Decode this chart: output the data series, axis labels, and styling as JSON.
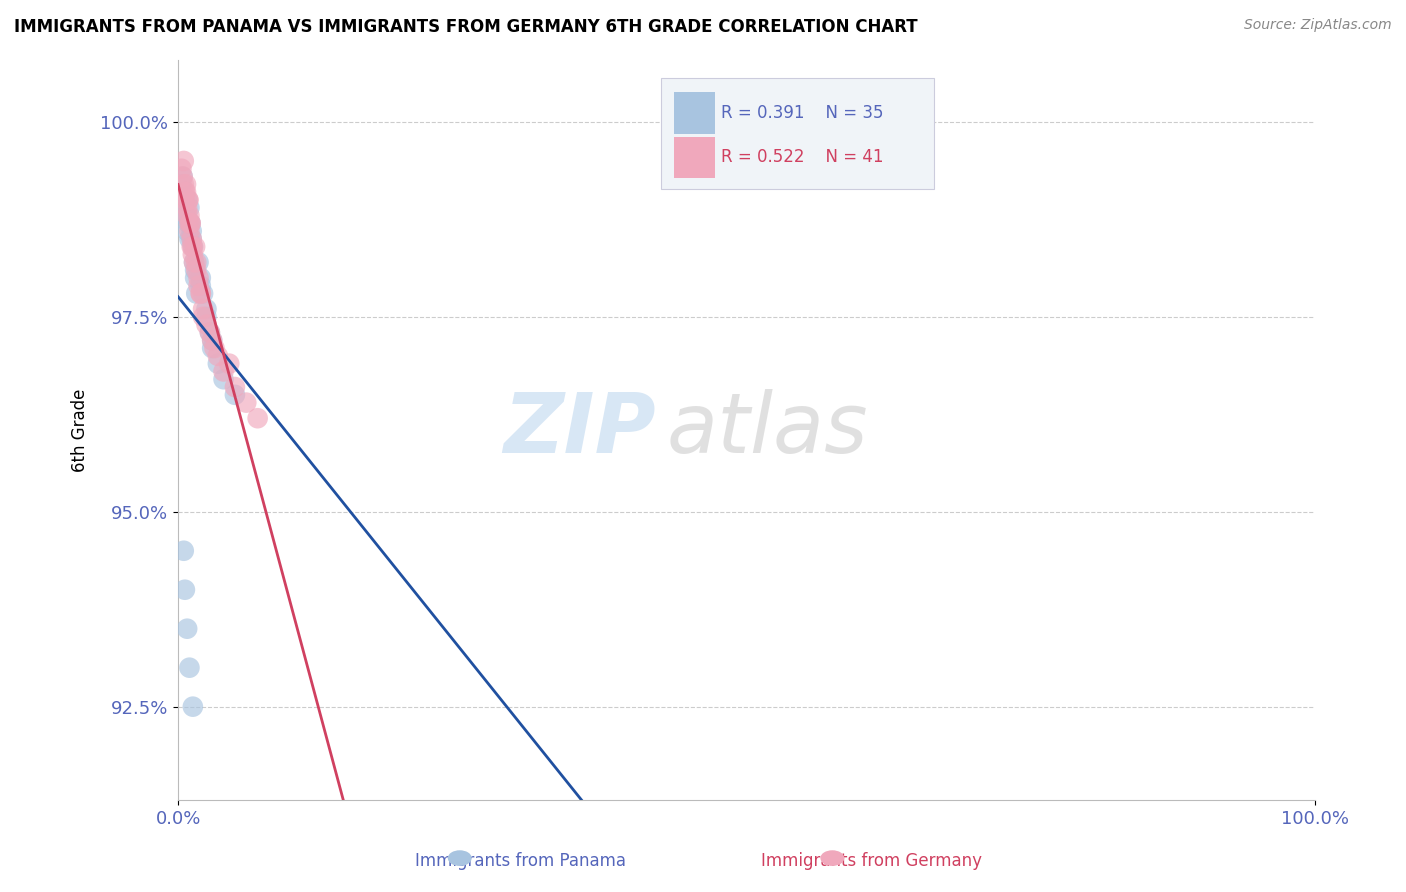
{
  "title": "IMMIGRANTS FROM PANAMA VS IMMIGRANTS FROM GERMANY 6TH GRADE CORRELATION CHART",
  "source": "Source: ZipAtlas.com",
  "xlabel_bottom": "Immigrants from Panama",
  "xlabel_bottom2": "Immigrants from Germany",
  "ylabel": "6th Grade",
  "watermark_zip": "ZIP",
  "watermark_atlas": "atlas",
  "xlim": [
    0.0,
    100.0
  ],
  "ylim": [
    91.3,
    100.8
  ],
  "yticks": [
    92.5,
    95.0,
    97.5,
    100.0
  ],
  "xticks": [
    0.0,
    100.0
  ],
  "legend_r1": "R = 0.391",
  "legend_n1": "N = 35",
  "legend_r2": "R = 0.522",
  "legend_n2": "N = 41",
  "panama_color": "#a8c4e0",
  "germany_color": "#f0a8bc",
  "panama_line_color": "#2050a0",
  "germany_line_color": "#d04060",
  "panama_points_x": [
    0.3,
    0.5,
    0.6,
    0.8,
    0.8,
    1.0,
    1.0,
    1.1,
    1.2,
    1.3,
    1.4,
    1.5,
    1.6,
    1.8,
    2.0,
    2.2,
    2.5,
    2.8,
    3.0,
    3.5,
    4.0,
    5.0,
    0.4,
    0.7,
    0.9,
    1.2,
    1.5,
    2.0,
    2.5,
    3.0,
    0.5,
    0.6,
    0.8,
    1.0,
    1.3
  ],
  "panama_points_y": [
    99.2,
    99.0,
    98.8,
    99.0,
    98.6,
    98.9,
    98.5,
    98.7,
    98.6,
    98.4,
    98.2,
    98.0,
    97.8,
    98.2,
    98.0,
    97.8,
    97.5,
    97.3,
    97.1,
    96.9,
    96.7,
    96.5,
    99.3,
    98.8,
    98.7,
    98.5,
    98.1,
    97.9,
    97.6,
    97.2,
    94.5,
    94.0,
    93.5,
    93.0,
    92.5
  ],
  "germany_points_x": [
    0.3,
    0.5,
    0.6,
    0.7,
    0.8,
    0.9,
    1.0,
    1.0,
    1.1,
    1.2,
    1.3,
    1.5,
    1.6,
    1.8,
    2.0,
    2.2,
    2.5,
    3.0,
    3.5,
    4.0,
    5.0,
    6.0,
    7.0,
    0.4,
    0.6,
    0.8,
    1.0,
    1.2,
    1.4,
    1.8,
    2.2,
    2.8,
    3.2,
    4.5,
    0.5,
    0.7,
    0.9,
    1.1,
    1.3,
    1.6,
    2.0
  ],
  "germany_points_y": [
    99.4,
    99.2,
    99.0,
    99.1,
    98.9,
    99.0,
    98.8,
    98.6,
    98.7,
    98.5,
    98.3,
    98.4,
    98.2,
    98.0,
    97.8,
    97.6,
    97.4,
    97.2,
    97.0,
    96.8,
    96.6,
    96.4,
    96.2,
    99.3,
    99.1,
    98.8,
    98.7,
    98.4,
    98.2,
    97.9,
    97.5,
    97.3,
    97.1,
    96.9,
    99.5,
    99.2,
    99.0,
    98.7,
    98.4,
    98.1,
    97.8
  ],
  "background_color": "#ffffff",
  "grid_color": "#cccccc",
  "tick_label_color": "#5566bb"
}
